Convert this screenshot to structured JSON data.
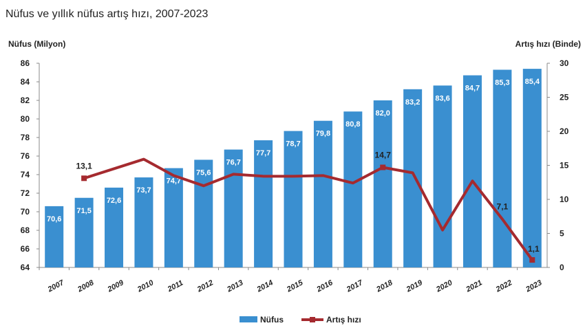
{
  "chart_data": {
    "type": "bar",
    "title": "Nüfus ve yıllık nüfus artış hızı, 2007-2023",
    "ylabel_left": "Nüfus (Milyon)",
    "ylabel_right": "Artış hızı (Binde)",
    "categories": [
      "2007",
      "2008",
      "2009",
      "2010",
      "2011",
      "2012",
      "2013",
      "2014",
      "2015",
      "2016",
      "2017",
      "2018",
      "2019",
      "2020",
      "2021",
      "2022",
      "2023"
    ],
    "ylim_left": [
      64,
      86
    ],
    "ylim_right": [
      0,
      30
    ],
    "yticks_left": [
      64,
      66,
      68,
      70,
      72,
      74,
      76,
      78,
      80,
      82,
      84,
      86
    ],
    "yticks_right": [
      0,
      5,
      10,
      15,
      20,
      25,
      30
    ],
    "grid": false,
    "legend_position": "bottom",
    "series": [
      {
        "name": "Nüfus",
        "type": "bar",
        "axis": "left",
        "color": "#3a8fd0",
        "values": [
          70.6,
          71.5,
          72.6,
          73.7,
          74.7,
          75.6,
          76.7,
          77.7,
          78.7,
          79.8,
          80.8,
          82.0,
          83.2,
          83.6,
          84.7,
          85.3,
          85.4
        ],
        "labels": [
          "70,6",
          "71,5",
          "72,6",
          "73,7",
          "74,7",
          "75,6",
          "76,7",
          "77,7",
          "78,7",
          "79,8",
          "80,8",
          "82,0",
          "83,2",
          "83,6",
          "84,7",
          "85,3",
          "85,4"
        ]
      },
      {
        "name": "Artış hızı",
        "type": "line",
        "axis": "right",
        "color": "#a52a2f",
        "x": [
          "2008",
          "2009",
          "2010",
          "2011",
          "2012",
          "2013",
          "2014",
          "2015",
          "2016",
          "2017",
          "2018",
          "2019",
          "2020",
          "2021",
          "2022",
          "2023"
        ],
        "values": [
          13.1,
          14.5,
          15.9,
          13.5,
          12.0,
          13.7,
          13.4,
          13.4,
          13.5,
          12.4,
          14.7,
          13.9,
          5.5,
          12.7,
          7.1,
          1.1
        ],
        "point_labels": [
          {
            "x": "2008",
            "label": "13,1"
          },
          {
            "x": "2018",
            "label": "14,7"
          },
          {
            "x": "2022",
            "label": "7,1"
          },
          {
            "x": "2023",
            "label": "1,1"
          }
        ]
      }
    ]
  }
}
